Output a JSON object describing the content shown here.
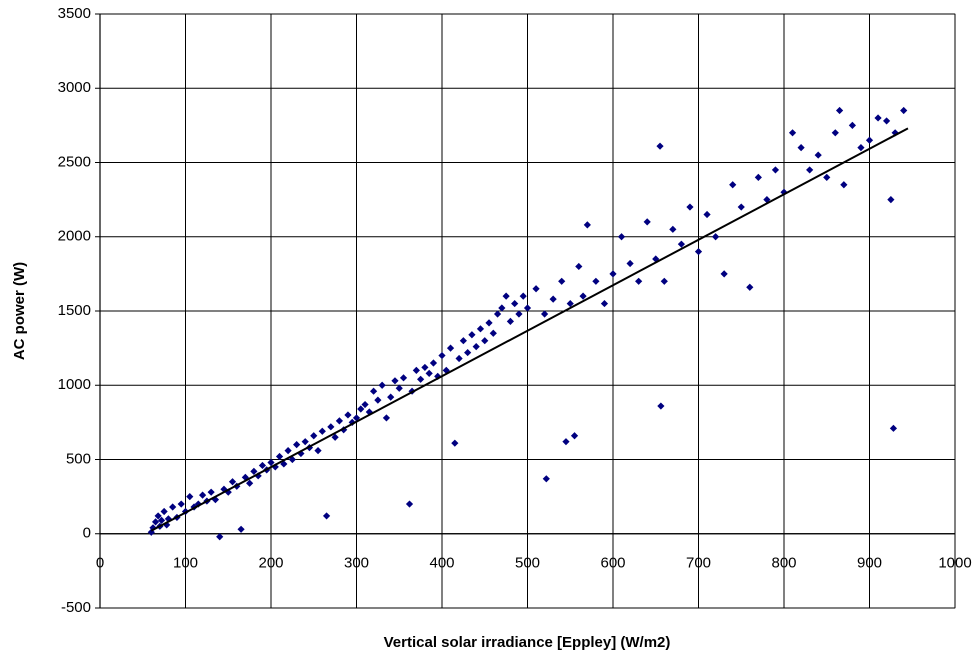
{
  "chart_data": {
    "type": "scatter",
    "x_label": "Vertical solar irradiance [Eppley]  (W/m2)",
    "y_label": "AC power (W)",
    "xlim": [
      0,
      1000
    ],
    "ylim": [
      -500,
      3500
    ],
    "xticks": [
      0,
      100,
      200,
      300,
      400,
      500,
      600,
      700,
      800,
      900,
      1000
    ],
    "yticks": [
      -500,
      0,
      500,
      1000,
      1500,
      2000,
      2500,
      3000,
      3500
    ],
    "grid": true,
    "color": "#000080",
    "x": [
      60,
      62,
      65,
      68,
      70,
      72,
      75,
      78,
      80,
      85,
      90,
      95,
      100,
      105,
      110,
      115,
      120,
      125,
      130,
      135,
      140,
      145,
      150,
      155,
      160,
      165,
      170,
      175,
      180,
      185,
      190,
      195,
      200,
      205,
      210,
      215,
      220,
      225,
      230,
      235,
      240,
      245,
      250,
      255,
      260,
      265,
      270,
      275,
      280,
      285,
      290,
      295,
      300,
      305,
      310,
      315,
      320,
      325,
      330,
      335,
      340,
      345,
      350,
      355,
      362,
      365,
      370,
      375,
      380,
      385,
      390,
      395,
      400,
      405,
      410,
      415,
      420,
      425,
      430,
      435,
      440,
      445,
      450,
      455,
      460,
      465,
      470,
      475,
      480,
      485,
      490,
      495,
      500,
      510,
      520,
      522,
      530,
      540,
      545,
      550,
      555,
      560,
      565,
      570,
      580,
      590,
      600,
      610,
      620,
      630,
      640,
      650,
      655,
      656,
      660,
      670,
      680,
      690,
      700,
      710,
      720,
      730,
      740,
      750,
      760,
      770,
      780,
      790,
      800,
      810,
      820,
      830,
      840,
      850,
      860,
      865,
      870,
      880,
      890,
      900,
      910,
      920,
      925,
      928,
      930,
      940
    ],
    "values": [
      10,
      40,
      80,
      120,
      50,
      90,
      150,
      60,
      100,
      180,
      110,
      200,
      150,
      250,
      180,
      200,
      260,
      220,
      280,
      230,
      -20,
      300,
      280,
      350,
      320,
      30,
      380,
      340,
      420,
      390,
      460,
      430,
      480,
      450,
      520,
      470,
      560,
      500,
      600,
      540,
      620,
      580,
      660,
      560,
      690,
      120,
      720,
      650,
      760,
      700,
      800,
      750,
      780,
      840,
      870,
      820,
      960,
      900,
      1000,
      780,
      920,
      1030,
      980,
      1050,
      200,
      960,
      1100,
      1040,
      1120,
      1080,
      1150,
      1060,
      1200,
      1100,
      1250,
      610,
      1180,
      1300,
      1220,
      1340,
      1260,
      1380,
      1300,
      1420,
      1350,
      1480,
      1520,
      1600,
      1430,
      1550,
      1480,
      1600,
      1520,
      1650,
      1480,
      370,
      1580,
      1700,
      620,
      1550,
      660,
      1800,
      1600,
      2080,
      1700,
      1550,
      1750,
      2000,
      1820,
      1700,
      2100,
      1850,
      2610,
      860,
      1700,
      2050,
      1950,
      2200,
      1900,
      2150,
      2000,
      1750,
      2350,
      2200,
      1660,
      2400,
      2250,
      2450,
      2300,
      2700,
      2600,
      2450,
      2550,
      2400,
      2700,
      2850,
      2350,
      2750,
      2600,
      2650,
      2800,
      2780,
      2250,
      710,
      2700,
      2850
    ],
    "trendline": {
      "color": "#000000",
      "x": [
        60,
        945
      ],
      "values": [
        20,
        2730
      ]
    }
  }
}
